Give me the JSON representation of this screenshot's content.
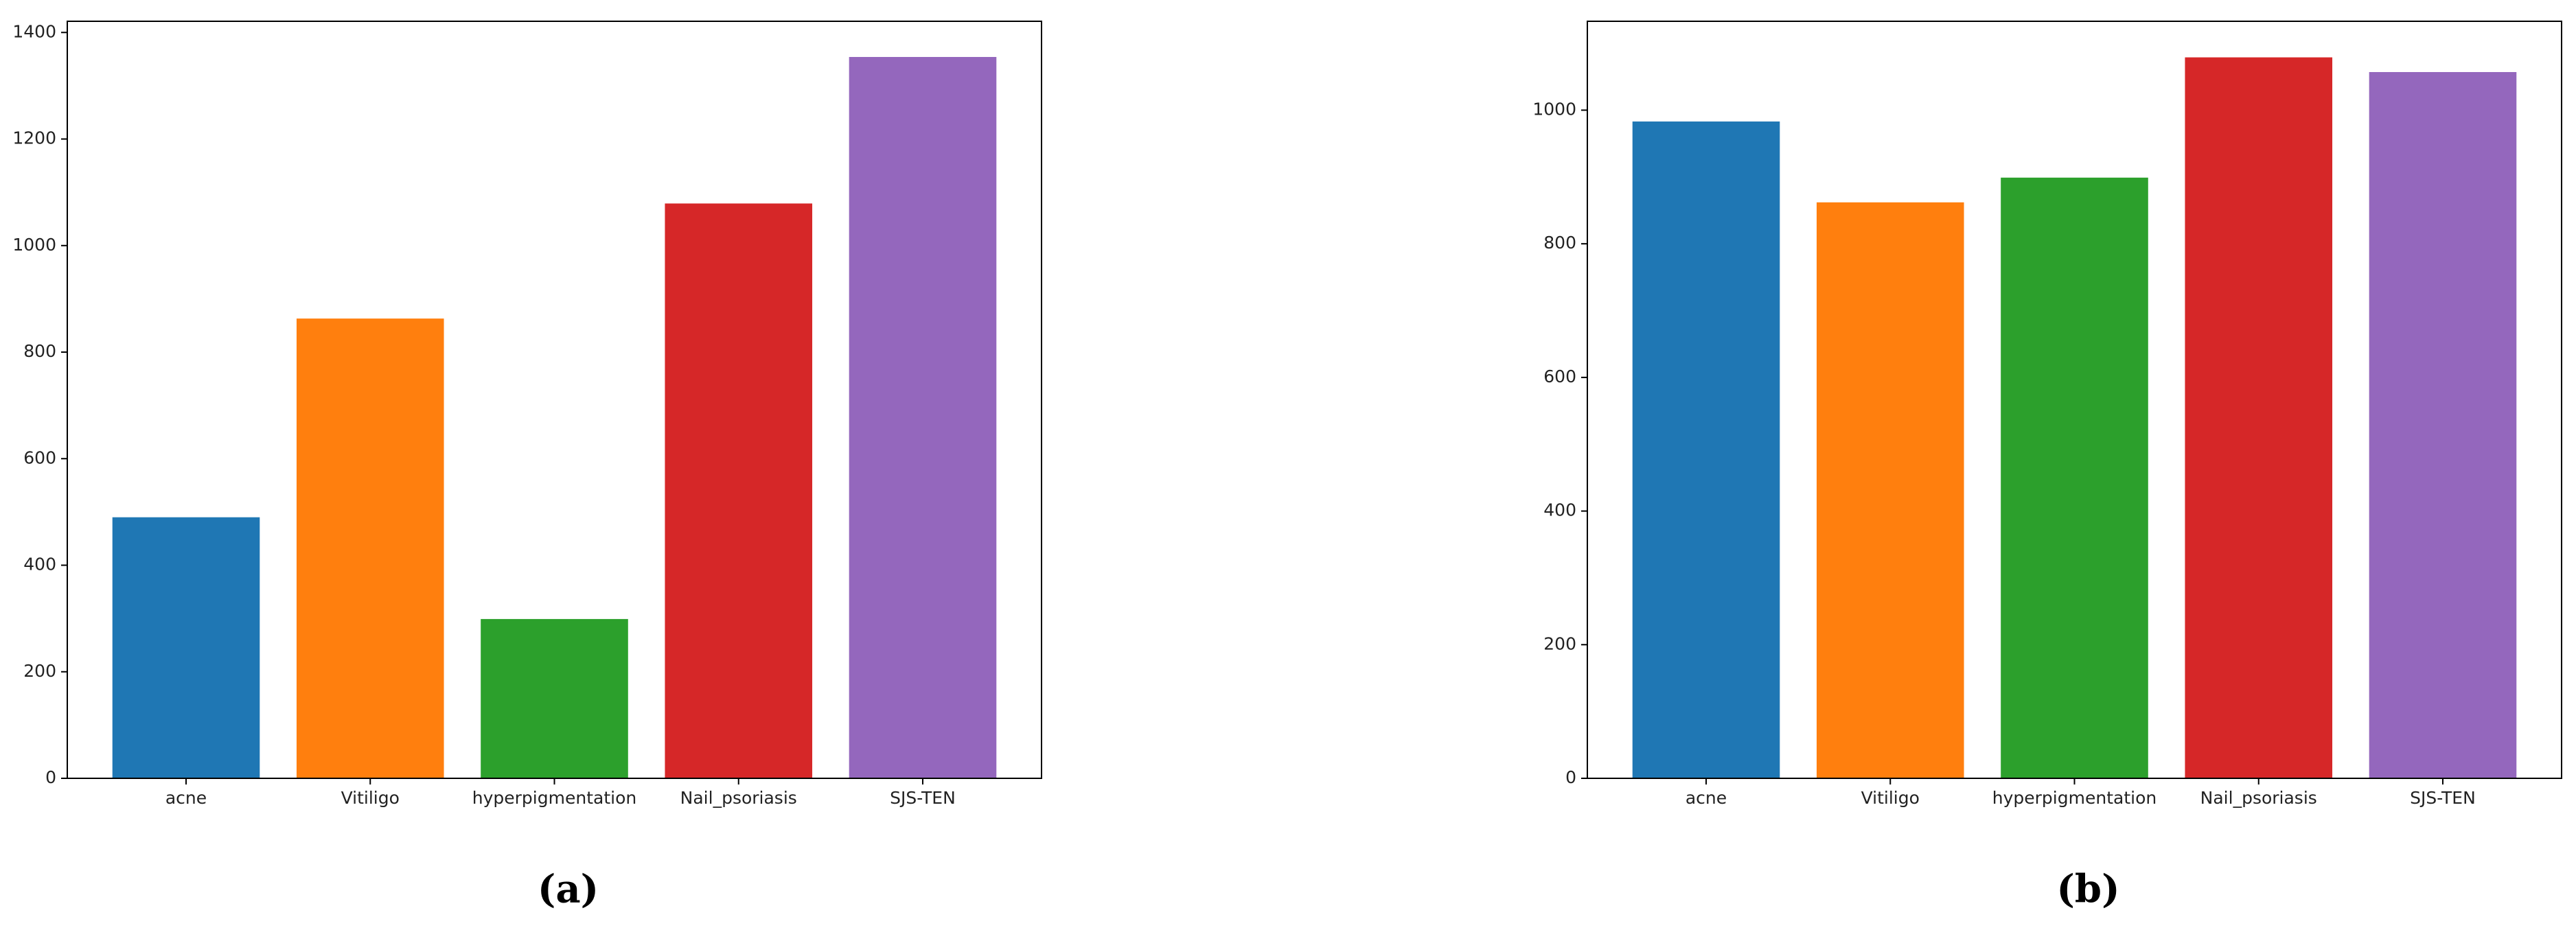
{
  "chart_data": [
    {
      "type": "bar",
      "title": "(a)",
      "categories": [
        "acne",
        "Vitiligo",
        "hyperpigmentation",
        "Nail_psoriasis",
        "SJS-TEN"
      ],
      "values": [
        490,
        863,
        299,
        1079,
        1354
      ],
      "colors": [
        "#1f77b4",
        "#ff7f0e",
        "#2ca02c",
        "#d62728",
        "#9467bd"
      ],
      "ylim": [
        0,
        1421
      ],
      "yticks": [
        0,
        200,
        400,
        600,
        800,
        1000,
        1200,
        1400
      ]
    },
    {
      "type": "bar",
      "title": "(b)",
      "categories": [
        "acne",
        "Vitiligo",
        "hyperpigmentation",
        "Nail_psoriasis",
        "SJS-TEN"
      ],
      "values": [
        983,
        862,
        899,
        1079,
        1057
      ],
      "colors": [
        "#1f77b4",
        "#ff7f0e",
        "#2ca02c",
        "#d62728",
        "#9467bd"
      ],
      "ylim": [
        0,
        1133
      ],
      "yticks": [
        0,
        200,
        400,
        600,
        800,
        1000
      ]
    }
  ]
}
